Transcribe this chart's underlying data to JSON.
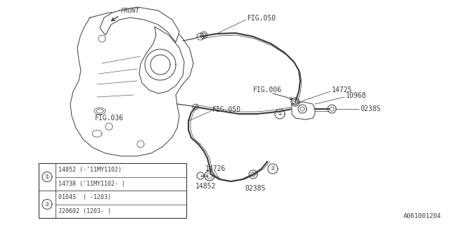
{
  "bg_color": "#ffffff",
  "line_color": "#3a3a3a",
  "part_number_code": "A061001204",
  "labels": {
    "FIG050_top": "FIG.050",
    "FIG050_mid": "FIG.050",
    "FIG006": "FIG.006",
    "FIG036": "FIG.036",
    "part14725": "14725",
    "part10968": "10968",
    "part0238S_top": "0238S",
    "part14726": "14726",
    "part14852_label": "14852",
    "part0238S_bot": "0238S",
    "front": "FRONT"
  },
  "legend": {
    "circle1_label1": "14852 (-'11MY1102)",
    "circle1_label2": "14738 ('11MY1102- )",
    "circle2_label1": "0104S  ( -1203)",
    "circle2_label2": "J20602 (1203- )"
  }
}
